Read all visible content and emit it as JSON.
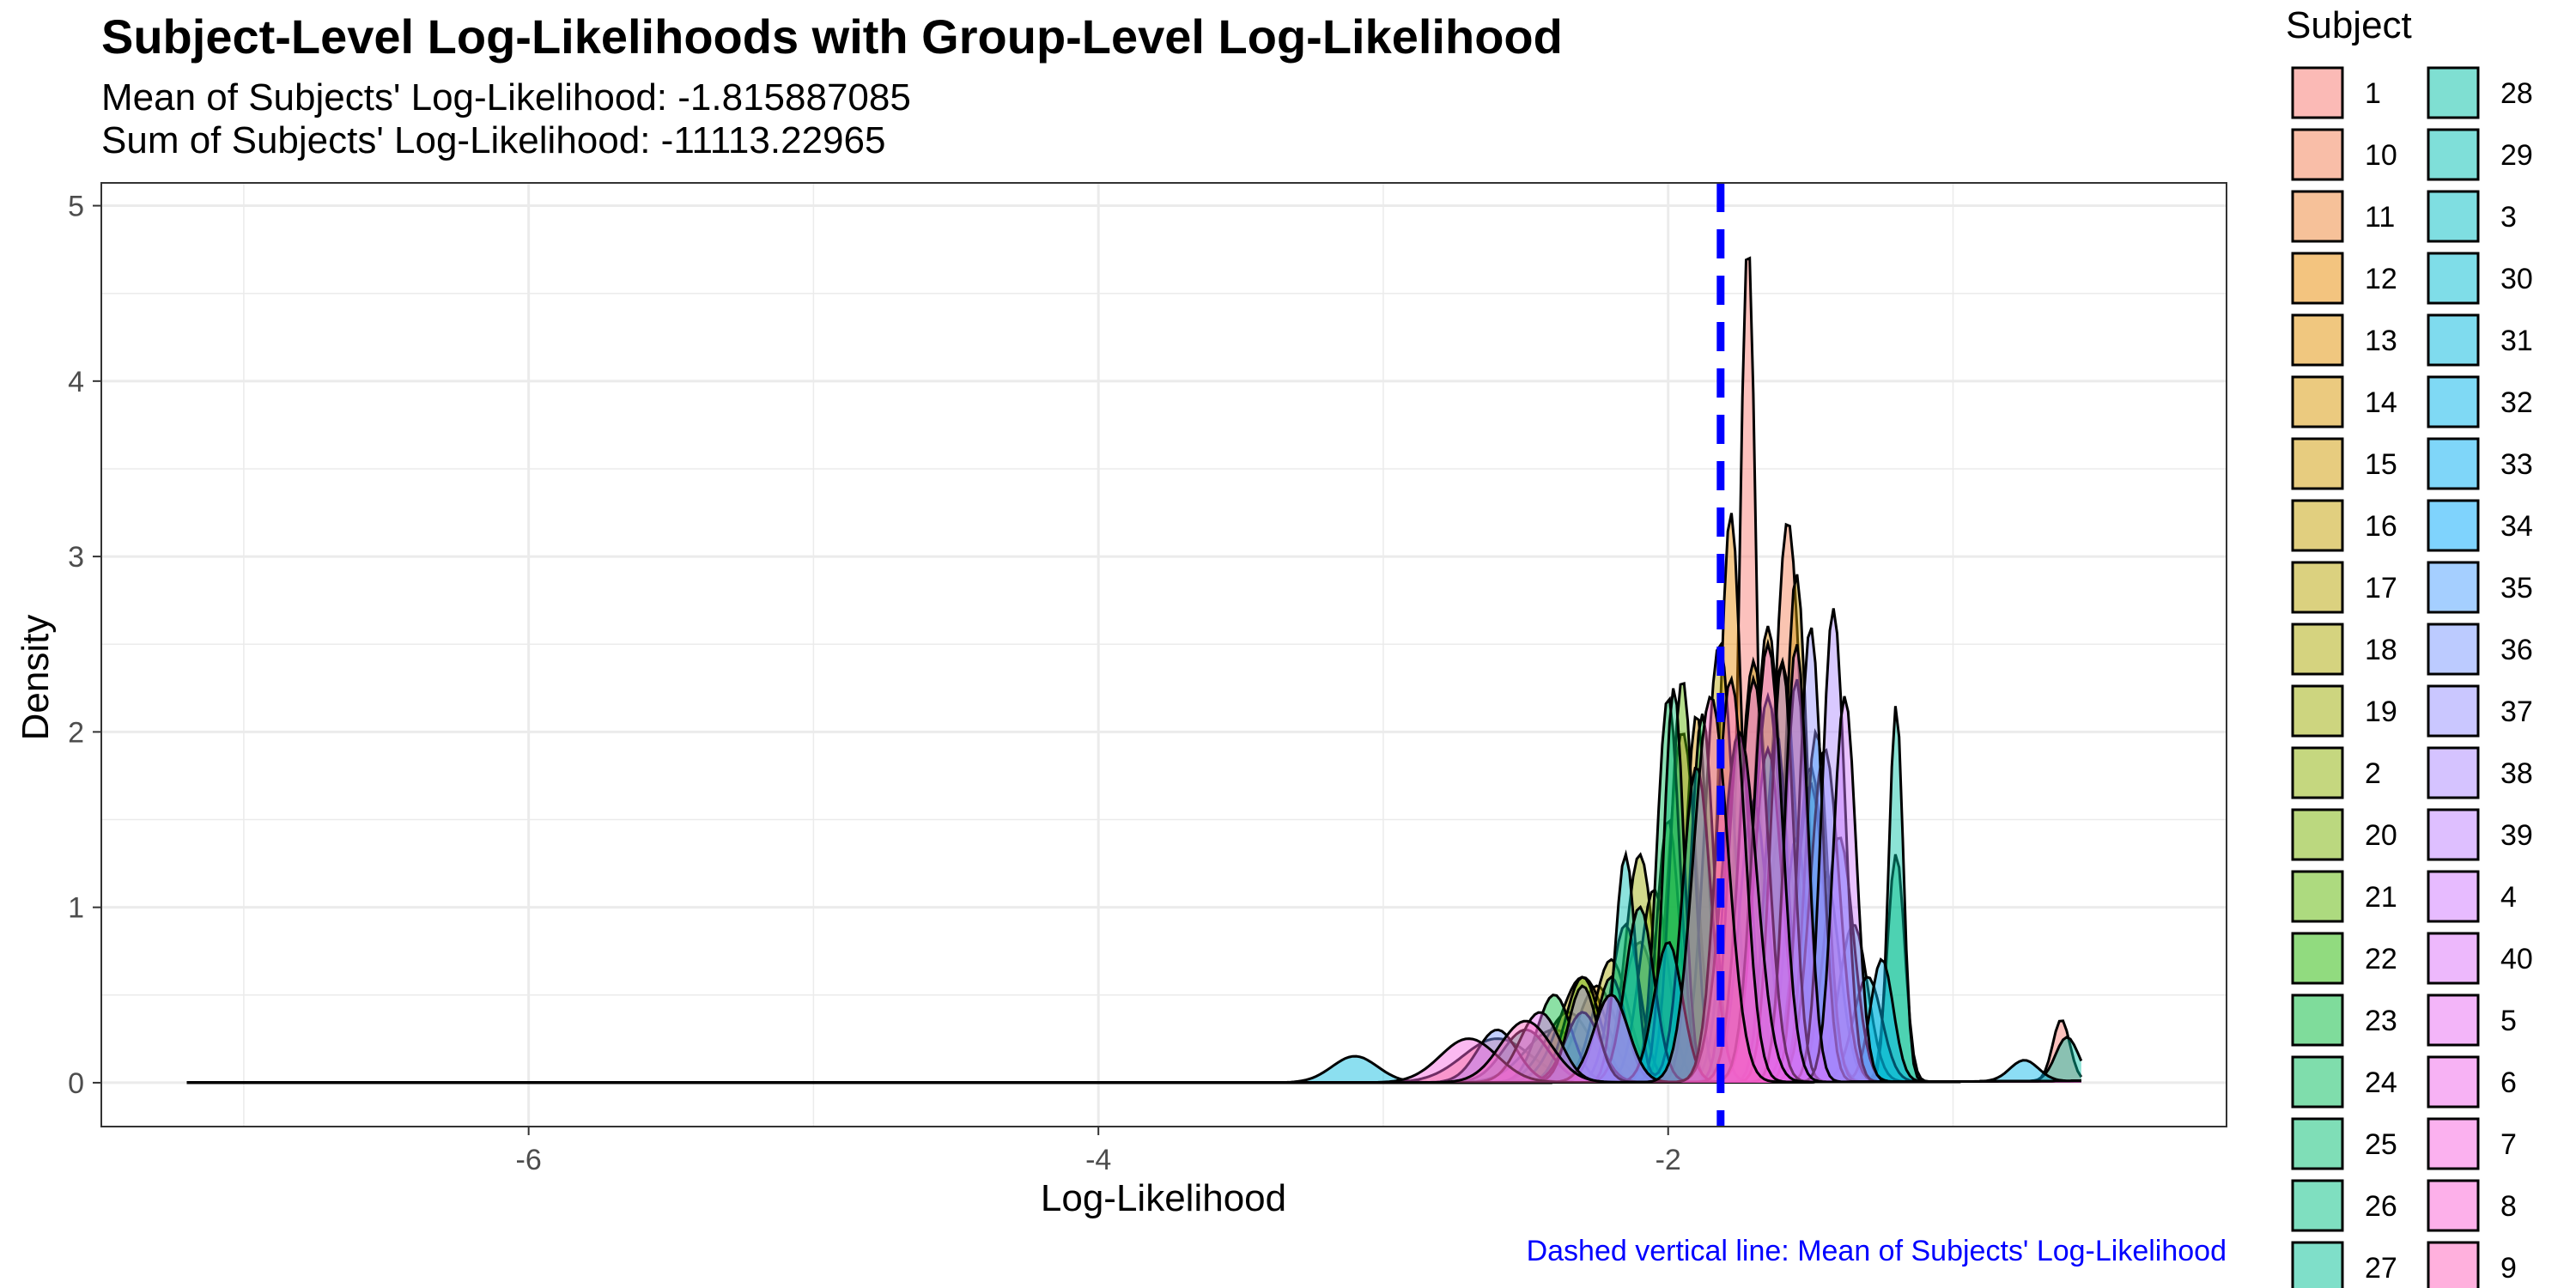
{
  "chart_data": {
    "type": "area",
    "title": "Subject-Level Log-Likelihoods with Group-Level Log-Likelihood",
    "subtitle_lines": [
      "Mean of Subjects' Log-Likelihood: -1.815887085",
      "Sum of Subjects' Log-Likelihood: -11113.22965"
    ],
    "xlabel": "Log-Likelihood",
    "ylabel": "Density",
    "caption": "Dashed vertical line: Mean of Subjects' Log-Likelihood",
    "xlim": [
      -7.5,
      -0.04
    ],
    "ylim": [
      -0.25,
      5.13
    ],
    "x_ticks": [
      -6,
      -4,
      -2
    ],
    "x_tick_labels": [
      "-6",
      "-4",
      "-2"
    ],
    "y_ticks": [
      0,
      1,
      2,
      3,
      4,
      5
    ],
    "y_tick_labels": [
      "0",
      "1",
      "2",
      "3",
      "4",
      "5"
    ],
    "x_range": [
      -7.2,
      -0.55
    ],
    "mean_line": -1.815887085,
    "grid": true,
    "legend": {
      "title": "Subject",
      "position": "right",
      "entries": [
        "1",
        "10",
        "11",
        "12",
        "13",
        "14",
        "15",
        "16",
        "17",
        "18",
        "19",
        "2",
        "20",
        "21",
        "22",
        "23",
        "24",
        "25",
        "26",
        "27",
        "28",
        "29",
        "3",
        "30",
        "31",
        "32",
        "33",
        "34",
        "35",
        "36",
        "37",
        "38",
        "39",
        "4",
        "40",
        "5",
        "6",
        "7",
        "8",
        "9"
      ]
    },
    "series_peaks": [
      {
        "name": "1",
        "color": "#F8766D",
        "peaks": [
          [
            -1.72,
            4.8,
            0.03
          ],
          [
            -2.6,
            0.25,
            0.12
          ],
          [
            -0.62,
            0.35,
            0.03
          ]
        ]
      },
      {
        "name": "10",
        "color": "#F47D51",
        "peaks": [
          [
            -1.58,
            3.2,
            0.05
          ],
          [
            -2.4,
            0.3,
            0.1
          ]
        ]
      },
      {
        "name": "11",
        "color": "#EE8434",
        "peaks": [
          [
            -1.95,
            2.0,
            0.05
          ],
          [
            -1.6,
            1.5,
            0.05
          ]
        ]
      },
      {
        "name": "12",
        "color": "#E88A00",
        "peaks": [
          [
            -1.78,
            3.25,
            0.04
          ],
          [
            -2.35,
            0.4,
            0.08
          ]
        ]
      },
      {
        "name": "13",
        "color": "#E18F00",
        "peaks": [
          [
            -1.65,
            2.6,
            0.05
          ],
          [
            -2.25,
            0.55,
            0.07
          ]
        ]
      },
      {
        "name": "14",
        "color": "#D89500",
        "peaks": [
          [
            -1.9,
            2.1,
            0.04
          ],
          [
            -1.45,
            1.2,
            0.05
          ]
        ]
      },
      {
        "name": "15",
        "color": "#CF9A00",
        "peaks": [
          [
            -1.55,
            2.9,
            0.04
          ],
          [
            -2.1,
            0.8,
            0.06
          ]
        ]
      },
      {
        "name": "16",
        "color": "#C49F00",
        "peaks": [
          [
            -1.7,
            2.4,
            0.05
          ],
          [
            -2.3,
            0.6,
            0.08
          ]
        ]
      },
      {
        "name": "17",
        "color": "#B8A300",
        "peaks": [
          [
            -1.82,
            2.5,
            0.05
          ]
        ]
      },
      {
        "name": "18",
        "color": "#ABA800",
        "peaks": [
          [
            -2.2,
            0.7,
            0.06
          ],
          [
            -1.6,
            2.4,
            0.05
          ]
        ]
      },
      {
        "name": "19",
        "color": "#9CAB00",
        "peaks": [
          [
            -2.1,
            1.3,
            0.05
          ],
          [
            -1.75,
            2.0,
            0.05
          ]
        ]
      },
      {
        "name": "2",
        "color": "#8BAF00",
        "peaks": [
          [
            -1.65,
            2.2,
            0.05
          ],
          [
            -2.05,
            1.1,
            0.05
          ]
        ]
      },
      {
        "name": "20",
        "color": "#77B200",
        "peaks": [
          [
            -2.0,
            1.5,
            0.04
          ],
          [
            -1.5,
            1.8,
            0.05
          ]
        ]
      },
      {
        "name": "21",
        "color": "#5BB500",
        "peaks": [
          [
            -1.95,
            2.3,
            0.04
          ],
          [
            -2.3,
            0.6,
            0.06
          ]
        ]
      },
      {
        "name": "22",
        "color": "#24B700",
        "peaks": [
          [
            -2.15,
            0.9,
            0.05
          ],
          [
            -1.7,
            1.6,
            0.05
          ]
        ]
      },
      {
        "name": "23",
        "color": "#00BA38",
        "peaks": [
          [
            -1.88,
            2.1,
            0.04
          ],
          [
            -2.4,
            0.5,
            0.06
          ]
        ]
      },
      {
        "name": "24",
        "color": "#00BC59",
        "peaks": [
          [
            -2.0,
            2.2,
            0.04
          ],
          [
            -1.55,
            1.4,
            0.04
          ]
        ]
      },
      {
        "name": "25",
        "color": "#00BD6F",
        "peaks": [
          [
            -1.98,
            2.25,
            0.035
          ],
          [
            -1.2,
            1.3,
            0.03
          ]
        ]
      },
      {
        "name": "26",
        "color": "#00BF82",
        "peaks": [
          [
            -1.75,
            2.0,
            0.04
          ],
          [
            -2.5,
            0.3,
            0.08
          ]
        ]
      },
      {
        "name": "27",
        "color": "#00C094",
        "peaks": [
          [
            -1.62,
            2.0,
            0.04
          ],
          [
            -2.2,
            0.6,
            0.05
          ]
        ]
      },
      {
        "name": "28",
        "color": "#00C0A5",
        "peaks": [
          [
            -1.2,
            2.15,
            0.025
          ],
          [
            -0.6,
            0.25,
            0.04
          ]
        ]
      },
      {
        "name": "29",
        "color": "#00BFB4",
        "peaks": [
          [
            -1.9,
            1.8,
            0.05
          ],
          [
            -2.15,
            1.3,
            0.035
          ]
        ]
      },
      {
        "name": "3",
        "color": "#00BEC3",
        "peaks": [
          [
            -1.35,
            0.9,
            0.05
          ],
          [
            -2.1,
            1.0,
            0.05
          ]
        ]
      },
      {
        "name": "30",
        "color": "#00BCD1",
        "peaks": [
          [
            -1.65,
            1.9,
            0.05
          ],
          [
            -1.3,
            0.6,
            0.05
          ]
        ]
      },
      {
        "name": "31",
        "color": "#00B8DE",
        "peaks": [
          [
            -1.5,
            1.7,
            0.05
          ],
          [
            -3.1,
            0.15,
            0.08
          ]
        ]
      },
      {
        "name": "32",
        "color": "#00B4E9",
        "peaks": [
          [
            -1.25,
            0.7,
            0.04
          ],
          [
            -0.75,
            0.12,
            0.05
          ]
        ]
      },
      {
        "name": "33",
        "color": "#00AEF3",
        "peaks": [
          [
            -1.4,
            1.4,
            0.05
          ],
          [
            -2.0,
            0.8,
            0.05
          ]
        ]
      },
      {
        "name": "34",
        "color": "#00A8FC",
        "peaks": [
          [
            -1.48,
            2.0,
            0.04
          ],
          [
            -2.3,
            0.4,
            0.06
          ]
        ]
      },
      {
        "name": "35",
        "color": "#4CA0FF",
        "peaks": [
          [
            -1.55,
            2.3,
            0.04
          ]
        ]
      },
      {
        "name": "36",
        "color": "#7997FF",
        "peaks": [
          [
            -1.45,
            1.9,
            0.05
          ],
          [
            -2.6,
            0.3,
            0.07
          ]
        ]
      },
      {
        "name": "37",
        "color": "#9590FF",
        "peaks": [
          [
            -1.5,
            2.6,
            0.04
          ],
          [
            -2.2,
            0.5,
            0.06
          ]
        ]
      },
      {
        "name": "38",
        "color": "#AB88FF",
        "peaks": [
          [
            -1.42,
            2.7,
            0.04
          ],
          [
            -2.3,
            0.55,
            0.05
          ]
        ]
      },
      {
        "name": "39",
        "color": "#BE80FF",
        "peaks": [
          [
            -1.6,
            2.4,
            0.04
          ]
        ]
      },
      {
        "name": "4",
        "color": "#CF78FF",
        "peaks": [
          [
            -1.38,
            2.2,
            0.04
          ],
          [
            -2.2,
            0.5,
            0.06
          ]
        ]
      },
      {
        "name": "40",
        "color": "#DC71FA",
        "peaks": [
          [
            -1.55,
            2.5,
            0.04
          ]
        ]
      },
      {
        "name": "5",
        "color": "#E76BF3",
        "peaks": [
          [
            -1.7,
            2.3,
            0.05
          ],
          [
            -2.45,
            0.4,
            0.07
          ]
        ]
      },
      {
        "name": "6",
        "color": "#F066EA",
        "peaks": [
          [
            -1.65,
            2.5,
            0.05
          ]
        ]
      },
      {
        "name": "7",
        "color": "#F763E0",
        "peaks": [
          [
            -1.75,
            2.0,
            0.06
          ],
          [
            -2.7,
            0.25,
            0.1
          ]
        ]
      },
      {
        "name": "8",
        "color": "#FC61D5",
        "peaks": [
          [
            -1.78,
            2.3,
            0.05
          ]
        ]
      },
      {
        "name": "9",
        "color": "#FF62BC",
        "peaks": [
          [
            -1.85,
            2.2,
            0.06
          ],
          [
            -2.5,
            0.35,
            0.09
          ]
        ]
      }
    ],
    "colors": {
      "mean_line": "#0000FF",
      "caption": "#0000FF",
      "grid": "#EBEBEB",
      "panel_border": "#333333"
    }
  }
}
